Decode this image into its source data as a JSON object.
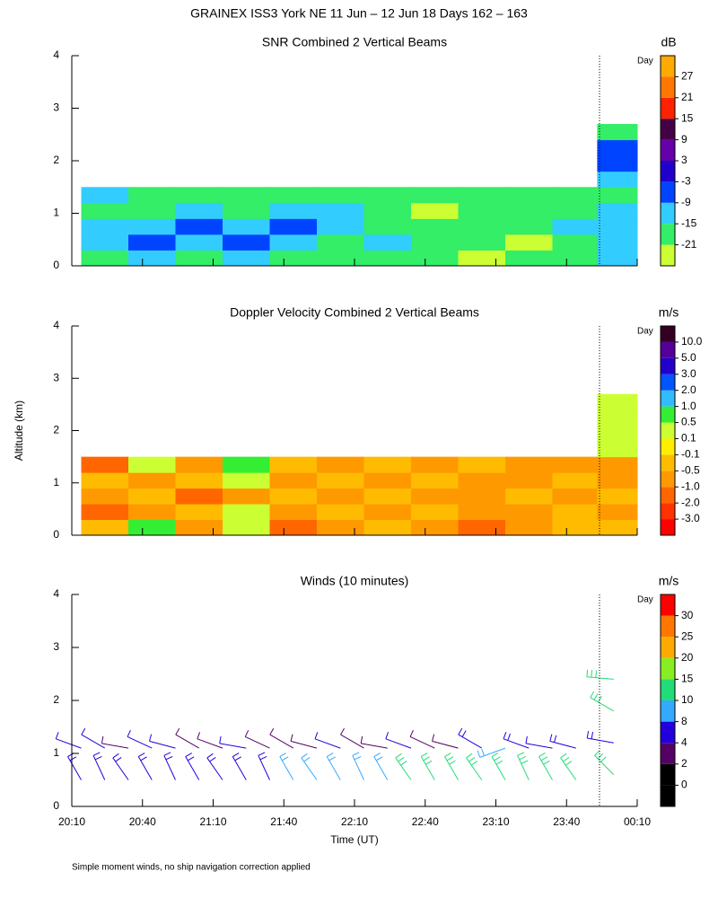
{
  "page_title": "GRAINEX ISS3 York NE  11 Jun – 12 Jun 18 Days 162 – 163",
  "footnote": "Simple moment winds, no ship navigation correction applied",
  "chart_data": [
    {
      "type": "heatmap",
      "title": "SNR Combined 2 Vertical Beams",
      "day_label": "Day",
      "day_boundary": 234,
      "xlim": [
        10,
        250
      ],
      "xticks": [
        10,
        40,
        70,
        100,
        130,
        160,
        190,
        220,
        250
      ],
      "ylim": [
        0,
        4
      ],
      "yticks": [
        0,
        1,
        2,
        3,
        4
      ],
      "colorbar": {
        "label": "dB",
        "ticks": [
          -21,
          -15,
          -9,
          -3,
          3,
          9,
          15,
          21,
          27
        ],
        "colors": [
          "#ccff33",
          "#33ee66",
          "#33ccff",
          "#0044ff",
          "#2200cc",
          "#6600aa",
          "#440044",
          "#ff2200",
          "#ff7700",
          "#ffaa00"
        ]
      },
      "x": [
        24,
        44,
        64,
        84,
        104,
        124,
        144,
        164,
        184,
        204,
        224,
        242
      ],
      "y": [
        0.15,
        0.45,
        0.75,
        1.05,
        1.35,
        1.65,
        1.95,
        2.25,
        2.55
      ],
      "z": [
        [
          -17,
          -12,
          -17,
          -12,
          -17,
          -18,
          -17,
          -17,
          -22,
          -17,
          -18,
          -12
        ],
        [
          -12,
          -6,
          -12,
          -6,
          -12,
          -17,
          -12,
          -17,
          -17,
          -22,
          -17,
          -12
        ],
        [
          -12,
          -12,
          -6,
          -12,
          -6,
          -12,
          -17,
          -17,
          -18,
          -17,
          -12,
          -12
        ],
        [
          -17,
          -17,
          -12,
          -17,
          -12,
          -12,
          -17,
          -22,
          -17,
          -18,
          -17,
          -12
        ],
        [
          -12,
          -17,
          -18,
          -17,
          -17,
          -18,
          -17,
          -17,
          -18,
          -18,
          -17,
          -17
        ],
        [
          null,
          null,
          null,
          null,
          null,
          null,
          null,
          null,
          null,
          null,
          null,
          -12
        ],
        [
          null,
          null,
          null,
          null,
          null,
          null,
          null,
          null,
          null,
          null,
          null,
          -6
        ],
        [
          null,
          null,
          null,
          null,
          null,
          null,
          null,
          null,
          null,
          null,
          null,
          -6
        ],
        [
          null,
          null,
          null,
          null,
          null,
          null,
          null,
          null,
          null,
          null,
          null,
          -17
        ]
      ]
    },
    {
      "type": "heatmap",
      "title": "Doppler Velocity Combined 2 Vertical Beams",
      "day_label": "Day",
      "day_boundary": 234,
      "ylabel": "Altitude (km)",
      "xlim": [
        10,
        250
      ],
      "xticks": [
        10,
        40,
        70,
        100,
        130,
        160,
        190,
        220,
        250
      ],
      "ylim": [
        0,
        4
      ],
      "yticks": [
        0,
        1,
        2,
        3,
        4
      ],
      "colorbar": {
        "label": "m/s",
        "ticks": [
          {
            "value": -3,
            "label": "-3.0"
          },
          {
            "value": -2,
            "label": "-2.0"
          },
          {
            "value": -1,
            "label": "-1.0"
          },
          -0.5,
          -0.1,
          0.1,
          0.5,
          {
            "value": 1,
            "label": "1.0"
          },
          {
            "value": 2,
            "label": "2.0"
          },
          {
            "value": 3,
            "label": "3.0"
          },
          {
            "value": 5,
            "label": "5.0"
          },
          {
            "value": 10,
            "label": "10.0"
          }
        ],
        "colors": [
          "#ff0000",
          "#ff3300",
          "#ff6600",
          "#ff9900",
          "#ffbb00",
          "#ffee00",
          "#ccff33",
          "#33ee33",
          "#33bbff",
          "#0055ff",
          "#2200cc",
          "#550099",
          "#330022"
        ]
      },
      "x": [
        24,
        44,
        64,
        84,
        104,
        124,
        144,
        164,
        184,
        204,
        224,
        242
      ],
      "y": [
        0.15,
        0.45,
        0.75,
        1.05,
        1.35,
        1.65,
        1.95,
        2.25,
        2.55
      ],
      "z": [
        [
          -0.3,
          0.7,
          -0.7,
          0.3,
          -1.5,
          -0.7,
          -0.3,
          -0.7,
          -1.5,
          -0.7,
          -0.3,
          -0.3
        ],
        [
          -1.5,
          -0.7,
          -0.3,
          0.3,
          -0.7,
          -0.3,
          -0.7,
          -0.3,
          -0.7,
          -0.7,
          -0.3,
          -0.7
        ],
        [
          -0.7,
          -0.3,
          -1.5,
          -0.7,
          -0.3,
          -0.7,
          -0.3,
          -0.7,
          -0.7,
          -0.3,
          -0.7,
          -0.3
        ],
        [
          -0.3,
          -0.7,
          -0.3,
          0.3,
          -0.7,
          -0.3,
          -0.7,
          -0.3,
          -0.7,
          -0.7,
          -0.3,
          -0.7
        ],
        [
          -1.5,
          0.3,
          -0.7,
          0.7,
          -0.3,
          -0.7,
          -0.3,
          -0.7,
          -0.3,
          -0.7,
          -0.7,
          -0.7
        ],
        [
          null,
          null,
          null,
          null,
          null,
          null,
          null,
          null,
          null,
          null,
          null,
          0.3
        ],
        [
          null,
          null,
          null,
          null,
          null,
          null,
          null,
          null,
          null,
          null,
          null,
          0.3
        ],
        [
          null,
          null,
          null,
          null,
          null,
          null,
          null,
          null,
          null,
          null,
          null,
          0.3
        ],
        [
          null,
          null,
          null,
          null,
          null,
          null,
          null,
          null,
          null,
          null,
          null,
          0.3
        ]
      ]
    },
    {
      "type": "barbs",
      "title": "Winds (10 minutes)",
      "day_label": "Day",
      "day_boundary": 234,
      "xlabel": "Time (UT)",
      "xlim": [
        10,
        250
      ],
      "xticks": [
        {
          "value": 10,
          "label": "20:10"
        },
        {
          "value": 40,
          "label": "20:40"
        },
        {
          "value": 70,
          "label": "21:10"
        },
        {
          "value": 100,
          "label": "21:40"
        },
        {
          "value": 130,
          "label": "22:10"
        },
        {
          "value": 160,
          "label": "22:40"
        },
        {
          "value": 190,
          "label": "23:10"
        },
        {
          "value": 220,
          "label": "23:40"
        },
        {
          "value": 250,
          "label": "00:10"
        }
      ],
      "ylim": [
        0,
        4
      ],
      "yticks": [
        0,
        1,
        2,
        3,
        4
      ],
      "colorbar": {
        "label": "m/s",
        "ticks": [
          0,
          2,
          4,
          8,
          10,
          15,
          20,
          25,
          30
        ],
        "colors": [
          "#000000",
          "#000000",
          "#550066",
          "#2200dd",
          "#33aaff",
          "#22dd77",
          "#88ee22",
          "#ffaa00",
          "#ff7700",
          "#ff0000"
        ]
      },
      "x": [
        14,
        24,
        34,
        44,
        54,
        64,
        74,
        84,
        94,
        104,
        114,
        124,
        134,
        144,
        154,
        164,
        174,
        184,
        194,
        204,
        214,
        224,
        14,
        24,
        34,
        44,
        54,
        64,
        74,
        84,
        94,
        104,
        114,
        124,
        134,
        144,
        154,
        164,
        174,
        184,
        194,
        204,
        214,
        224,
        240,
        240,
        240,
        240
      ],
      "alt": [
        0.5,
        0.5,
        0.5,
        0.5,
        0.5,
        0.5,
        0.5,
        0.5,
        0.5,
        0.5,
        0.5,
        0.5,
        0.5,
        0.5,
        0.5,
        0.5,
        0.5,
        0.5,
        0.5,
        0.5,
        0.5,
        0.5,
        1.1,
        1.1,
        1.1,
        1.1,
        1.1,
        1.1,
        1.1,
        1.1,
        1.1,
        1.1,
        1.1,
        1.1,
        1.1,
        1.1,
        1.1,
        1.1,
        1.1,
        1.1,
        1.1,
        1.1,
        1.1,
        1.1,
        0.6,
        1.2,
        1.8,
        2.4
      ],
      "speed": [
        5,
        5,
        5,
        5,
        6,
        6,
        6,
        7,
        7,
        8,
        8,
        8,
        9,
        9,
        10,
        11,
        12,
        12,
        13,
        13,
        13,
        13,
        4,
        4,
        3,
        4,
        4,
        3,
        3,
        4,
        3,
        3,
        3,
        4,
        3,
        3,
        4,
        3,
        3,
        5,
        8,
        6,
        4,
        5,
        12,
        6,
        14,
        10
      ],
      "dir": [
        330,
        335,
        325,
        330,
        335,
        330,
        325,
        330,
        335,
        330,
        325,
        330,
        335,
        330,
        325,
        330,
        330,
        325,
        330,
        335,
        330,
        325,
        290,
        300,
        280,
        295,
        285,
        300,
        290,
        280,
        295,
        300,
        285,
        290,
        300,
        280,
        290,
        295,
        285,
        300,
        250,
        290,
        280,
        285,
        315,
        280,
        300,
        275
      ]
    }
  ]
}
